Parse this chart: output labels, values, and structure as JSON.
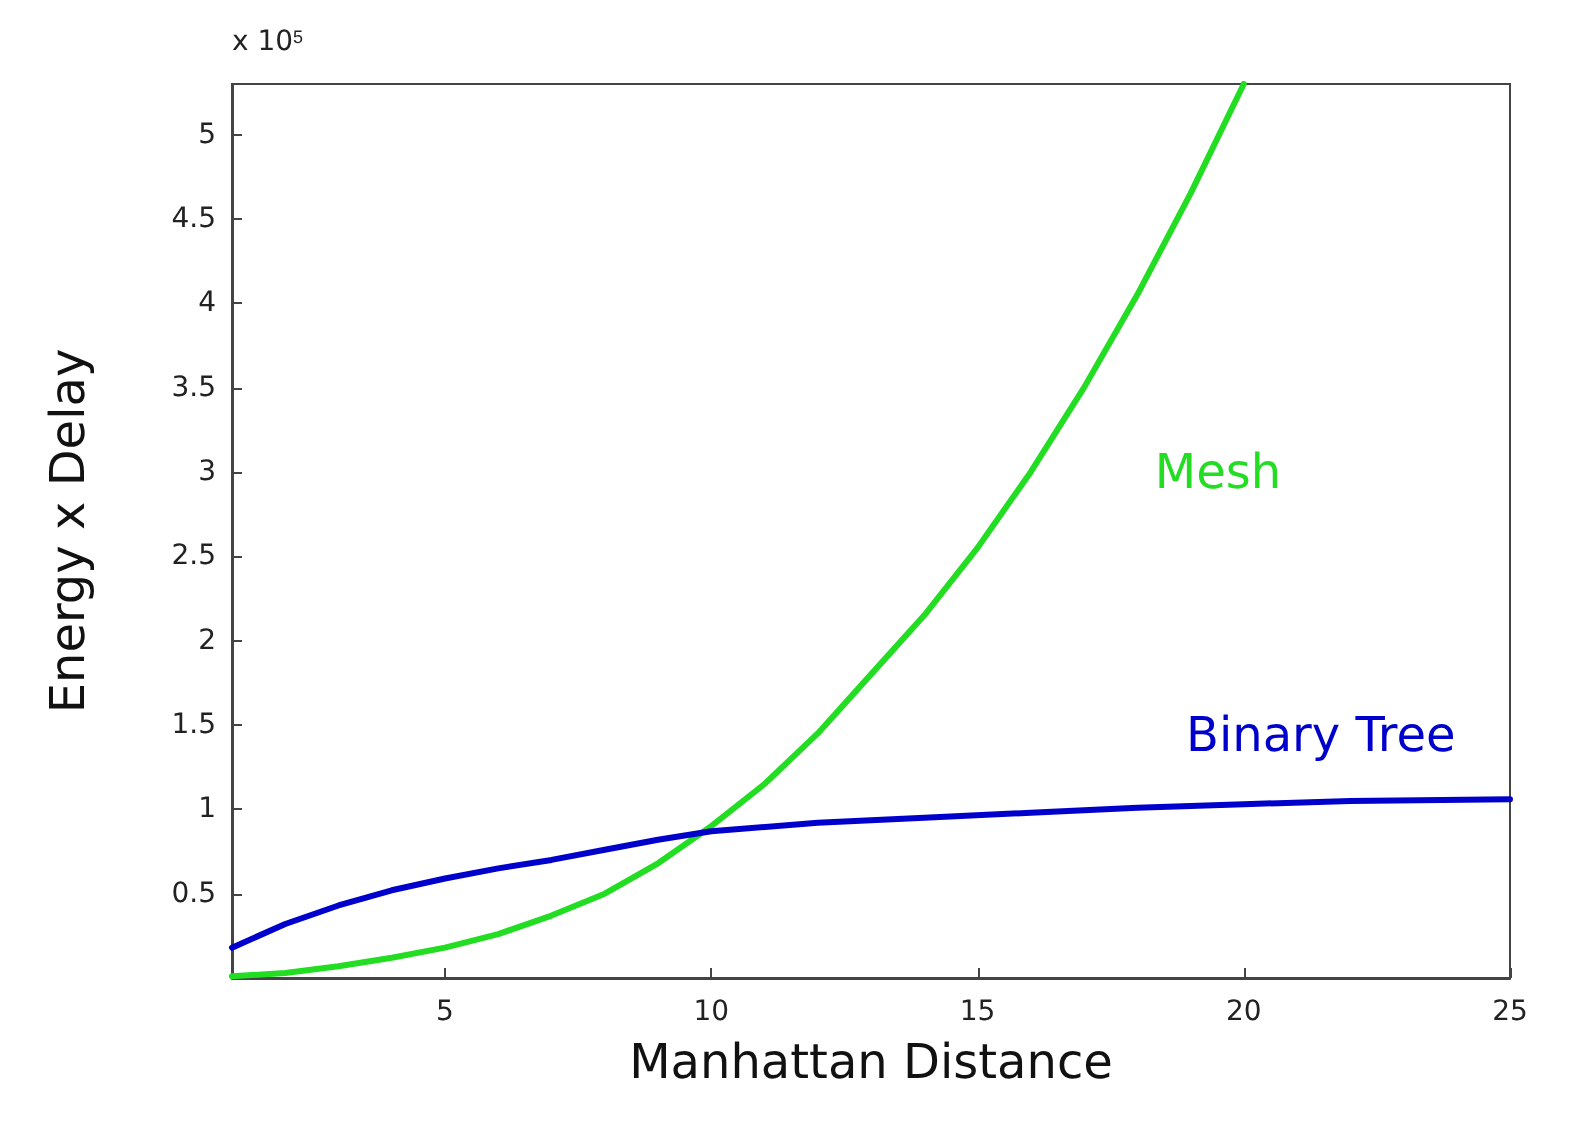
{
  "chart_data": {
    "type": "line",
    "xlabel": "Manhattan Distance",
    "ylabel": "Energy x Delay",
    "annotations": [
      "x 10$^{5}$"
    ],
    "xlim": [
      1,
      25
    ],
    "xticks": [
      5,
      10,
      15,
      20,
      25
    ],
    "ylim": [
      0,
      5.3
    ],
    "yticks": [
      0.5,
      1,
      1.5,
      2,
      2.5,
      3,
      3.5,
      4,
      4.5,
      5
    ],
    "grid": false,
    "legend": false,
    "marker": "none",
    "line_style": "solid",
    "series": [
      {
        "name": "Mesh",
        "color": "#22dd22",
        "x": [
          1,
          2,
          3,
          4,
          5,
          6,
          7,
          8,
          9,
          10,
          11,
          12,
          13,
          14,
          15,
          16,
          17,
          18,
          19,
          20
        ],
        "values": [
          0.01,
          0.03,
          0.07,
          0.12,
          0.18,
          0.26,
          0.37,
          0.5,
          0.68,
          0.9,
          1.15,
          1.45,
          1.8,
          2.15,
          2.55,
          3.0,
          3.5,
          4.05,
          4.65,
          5.3
        ]
      },
      {
        "name": "Binary Tree",
        "color": "#0000cc",
        "x": [
          1,
          2,
          3,
          4,
          5,
          6,
          7,
          8,
          9,
          10,
          12,
          14,
          16,
          18,
          20,
          22,
          25
        ],
        "values": [
          0.18,
          0.32,
          0.43,
          0.52,
          0.59,
          0.65,
          0.7,
          0.76,
          0.82,
          0.87,
          0.92,
          0.95,
          0.98,
          1.01,
          1.03,
          1.05,
          1.06
        ]
      }
    ]
  }
}
